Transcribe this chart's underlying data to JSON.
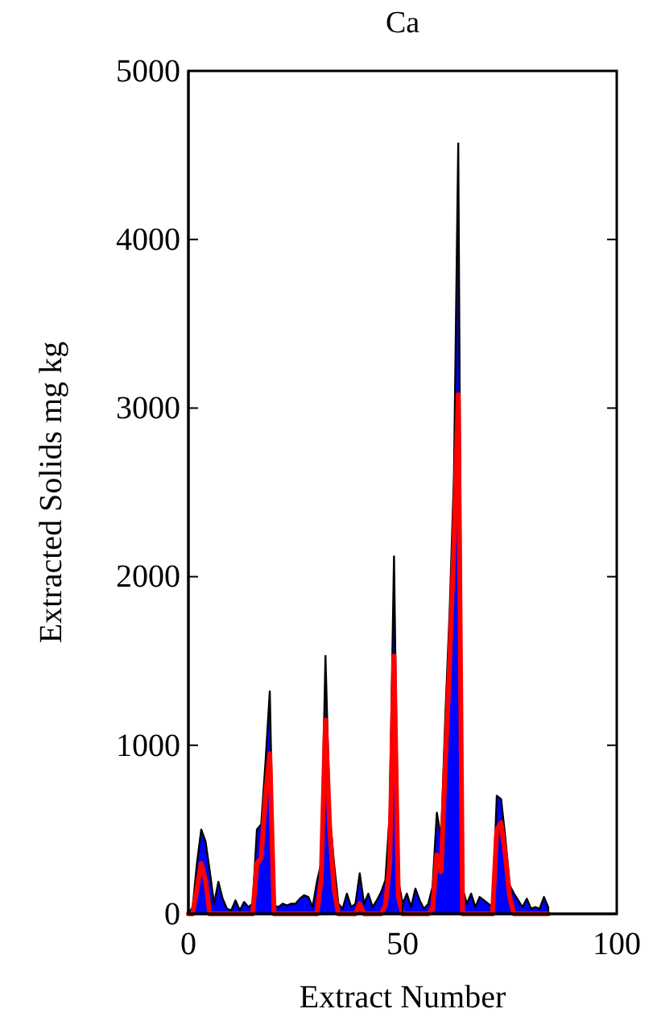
{
  "chart_data": {
    "type": "area",
    "title": "Ca",
    "xlabel": "Extract Number",
    "ylabel": "Extracted Solids mg kg",
    "x": [
      0,
      1,
      2,
      3,
      4,
      5,
      6,
      7,
      8,
      9,
      10,
      11,
      12,
      13,
      14,
      15,
      16,
      17,
      18,
      19,
      20,
      21,
      22,
      23,
      24,
      25,
      26,
      27,
      28,
      29,
      30,
      31,
      32,
      33,
      34,
      35,
      36,
      37,
      38,
      39,
      40,
      41,
      42,
      43,
      44,
      45,
      46,
      47,
      48,
      49,
      50,
      51,
      52,
      53,
      54,
      55,
      56,
      57,
      58,
      59,
      60,
      61,
      62,
      63,
      64,
      65,
      66,
      67,
      68,
      69,
      70,
      71,
      72,
      73,
      74,
      75,
      76,
      77,
      78,
      79,
      80,
      81,
      82,
      83,
      84
    ],
    "series": [
      {
        "color": "#0000ff",
        "values": [
          0,
          40,
          300,
          500,
          430,
          250,
          60,
          190,
          90,
          30,
          20,
          80,
          20,
          70,
          40,
          60,
          500,
          530,
          900,
          1320,
          50,
          40,
          60,
          50,
          60,
          60,
          90,
          110,
          100,
          40,
          190,
          300,
          1530,
          580,
          300,
          60,
          30,
          120,
          40,
          60,
          240,
          60,
          120,
          40,
          80,
          130,
          200,
          600,
          2120,
          200,
          60,
          120,
          40,
          150,
          80,
          30,
          60,
          160,
          600,
          450,
          1180,
          1800,
          2600,
          4570,
          150,
          60,
          120,
          40,
          100,
          80,
          60,
          40,
          700,
          680,
          450,
          170,
          120,
          80,
          40,
          90,
          30,
          40,
          30,
          100,
          40
        ]
      },
      {
        "type": "line",
        "color": "#ff0000",
        "values": [
          0,
          0,
          150,
          300,
          200,
          0,
          0,
          0,
          0,
          0,
          0,
          0,
          0,
          0,
          0,
          0,
          300,
          330,
          700,
          950,
          0,
          0,
          0,
          0,
          0,
          0,
          0,
          0,
          0,
          0,
          0,
          200,
          1150,
          500,
          150,
          0,
          0,
          0,
          0,
          0,
          60,
          0,
          0,
          0,
          0,
          0,
          50,
          300,
          1530,
          100,
          0,
          0,
          0,
          0,
          0,
          0,
          0,
          30,
          350,
          250,
          900,
          1500,
          2200,
          3080,
          0,
          0,
          0,
          0,
          0,
          0,
          0,
          0,
          500,
          540,
          350,
          100,
          0,
          0,
          0,
          0,
          0,
          0,
          0,
          0,
          0
        ]
      }
    ],
    "xlim": [
      0,
      100
    ],
    "xticks": [
      0,
      50,
      100
    ],
    "ylim": [
      0,
      5000
    ],
    "yticks": [
      0,
      1000,
      2000,
      3000,
      4000,
      5000
    ]
  }
}
